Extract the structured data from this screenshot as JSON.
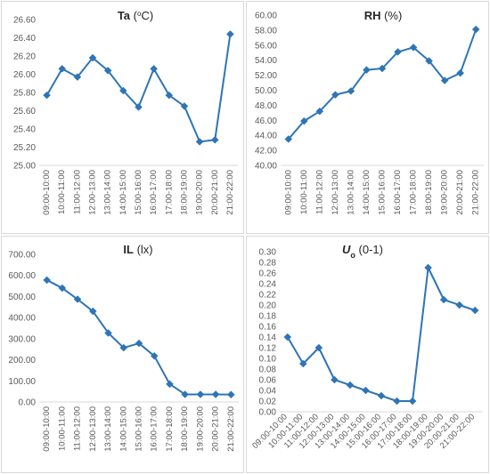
{
  "colors": {
    "line": "#2E75B6",
    "grid": "#d9d9d9",
    "text": "#595959",
    "title": "#262626"
  },
  "chart_data": [
    {
      "type": "line",
      "title_main": "Ta",
      "title_unit": "(oC)",
      "title_unit_pre": "(",
      "title_unit_sup": "o",
      "title_unit_post": "C)",
      "categories": [
        "09:00-10:00",
        "10:00-11:00",
        "11:00-12:00",
        "12:00-13:00",
        "13:00-14:00",
        "14:00-15:00",
        "15:00-16:00",
        "16:00-17:00",
        "17:00-18:00",
        "18:00-19:00",
        "19:00-20:00",
        "20:00-21:00",
        "21:00-22:00"
      ],
      "values": [
        25.77,
        26.06,
        25.97,
        26.18,
        26.04,
        25.82,
        25.64,
        26.06,
        25.77,
        25.65,
        25.26,
        25.28,
        26.44
      ],
      "ylim": [
        25.0,
        26.6
      ],
      "ystep": 0.2,
      "ytick_labels": [
        "25.00",
        "25.20",
        "25.40",
        "25.60",
        "25.80",
        "26.00",
        "26.20",
        "26.40",
        "26.60"
      ],
      "x_label_rotation": "vertical",
      "grid": false
    },
    {
      "type": "line",
      "title_main": "RH",
      "title_unit": "(%)",
      "categories": [
        "09:00-10:00",
        "10:00-11:00",
        "11:00-12:00",
        "12:00-13:00",
        "13:00-14:00",
        "14:00-15:00",
        "15:00-16:00",
        "16:00-17:00",
        "17:00-18:00",
        "18:00-19:00",
        "19:00-20:00",
        "20:00-21:00",
        "21:00-22:00"
      ],
      "values": [
        43.5,
        45.9,
        47.2,
        49.4,
        49.9,
        52.7,
        52.9,
        55.1,
        55.7,
        53.9,
        51.3,
        52.3,
        58.1
      ],
      "ylim": [
        40.0,
        60.0
      ],
      "ystep": 2,
      "ytick_labels": [
        "40.00",
        "42.00",
        "44.00",
        "46.00",
        "48.00",
        "50.00",
        "52.00",
        "54.00",
        "56.00",
        "58.00",
        "60.00"
      ],
      "x_label_rotation": "vertical",
      "grid": false
    },
    {
      "type": "line",
      "title_main": "IL",
      "title_unit": "(lx)",
      "categories": [
        "09:00-10:00",
        "10:00-11:00",
        "11:00-12:00",
        "12:00-13:00",
        "13:00-14:00",
        "14:00-15:00",
        "15:00-16:00",
        "16:00-17:00",
        "17:00-18:00",
        "18:00-19:00",
        "19:00-20:00",
        "20:00-21:00",
        "21:00-22:00"
      ],
      "values": [
        578,
        540,
        487,
        430,
        327,
        257,
        278,
        218,
        85,
        36,
        36,
        36,
        35
      ],
      "ylim": [
        0,
        700
      ],
      "ystep": 100,
      "ytick_labels": [
        "0.00",
        "100.00",
        "200.00",
        "300.00",
        "400.00",
        "500.00",
        "600.00",
        "700.00"
      ],
      "x_label_rotation": "vertical",
      "grid": false
    },
    {
      "type": "line",
      "title_main": "U",
      "title_sub": "o",
      "title_unit": "(0-1)",
      "categories": [
        "09:00-10:00",
        "10:00-11:00",
        "11:00-12:00",
        "12:00-13:00",
        "13:00-14:00",
        "14:00-15:00",
        "15:00-16:00",
        "16:00-17:00",
        "17:00-18:00",
        "18:00-19:00",
        "19:00-20:00",
        "20:00-21:00",
        "21:00-22:00"
      ],
      "values": [
        0.14,
        0.09,
        0.12,
        0.06,
        0.05,
        0.04,
        0.03,
        0.02,
        0.02,
        0.27,
        0.21,
        0.2,
        0.19
      ],
      "ylim": [
        0.0,
        0.3
      ],
      "ystep": 0.02,
      "ytick_labels": [
        "0.00",
        "0.02",
        "0.04",
        "0.06",
        "0.08",
        "0.10",
        "0.12",
        "0.14",
        "0.16",
        "0.18",
        "0.20",
        "0.22",
        "0.24",
        "0.26",
        "0.28",
        "0.30"
      ],
      "x_label_rotation": "diagonal",
      "grid": false
    }
  ]
}
